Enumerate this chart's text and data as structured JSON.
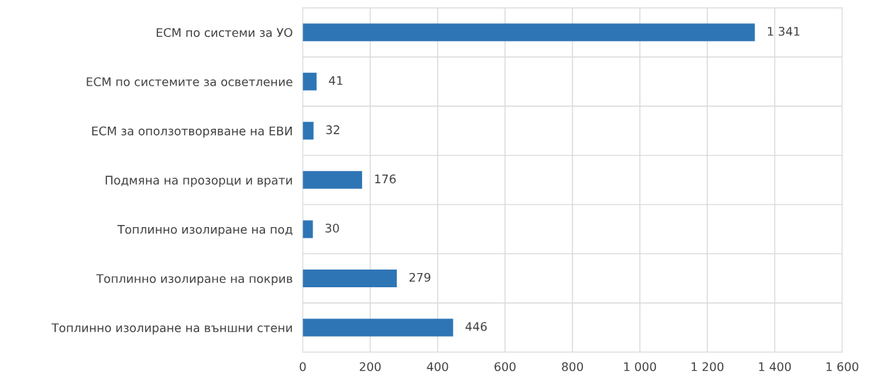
{
  "chart_data": {
    "type": "bar",
    "orientation": "horizontal",
    "categories": [
      "ЕСМ по системи за УО",
      "ЕСМ по системите за осветление",
      "ЕСМ за оползотворяване на ЕВИ",
      "Подмяна на прозорци и врати",
      "Топлинно изолиране на под",
      "Топлинно изолиране на покрив",
      "Топлинно изолиране на външни стени"
    ],
    "values": [
      1341,
      41,
      32,
      176,
      30,
      279,
      446
    ],
    "value_labels": [
      "1 341",
      "41",
      "32",
      "176",
      "30",
      "279",
      "446"
    ],
    "color": "#2e75b6",
    "xlim": [
      0,
      1600
    ],
    "xticks": [
      0,
      200,
      400,
      600,
      800,
      {
        "value": 1000,
        "label": "1 000"
      },
      {
        "value": 1200,
        "label": "1 200"
      },
      {
        "value": 1400,
        "label": "1 400"
      },
      {
        "value": 1600,
        "label": "1 600"
      }
    ],
    "grid": true
  }
}
